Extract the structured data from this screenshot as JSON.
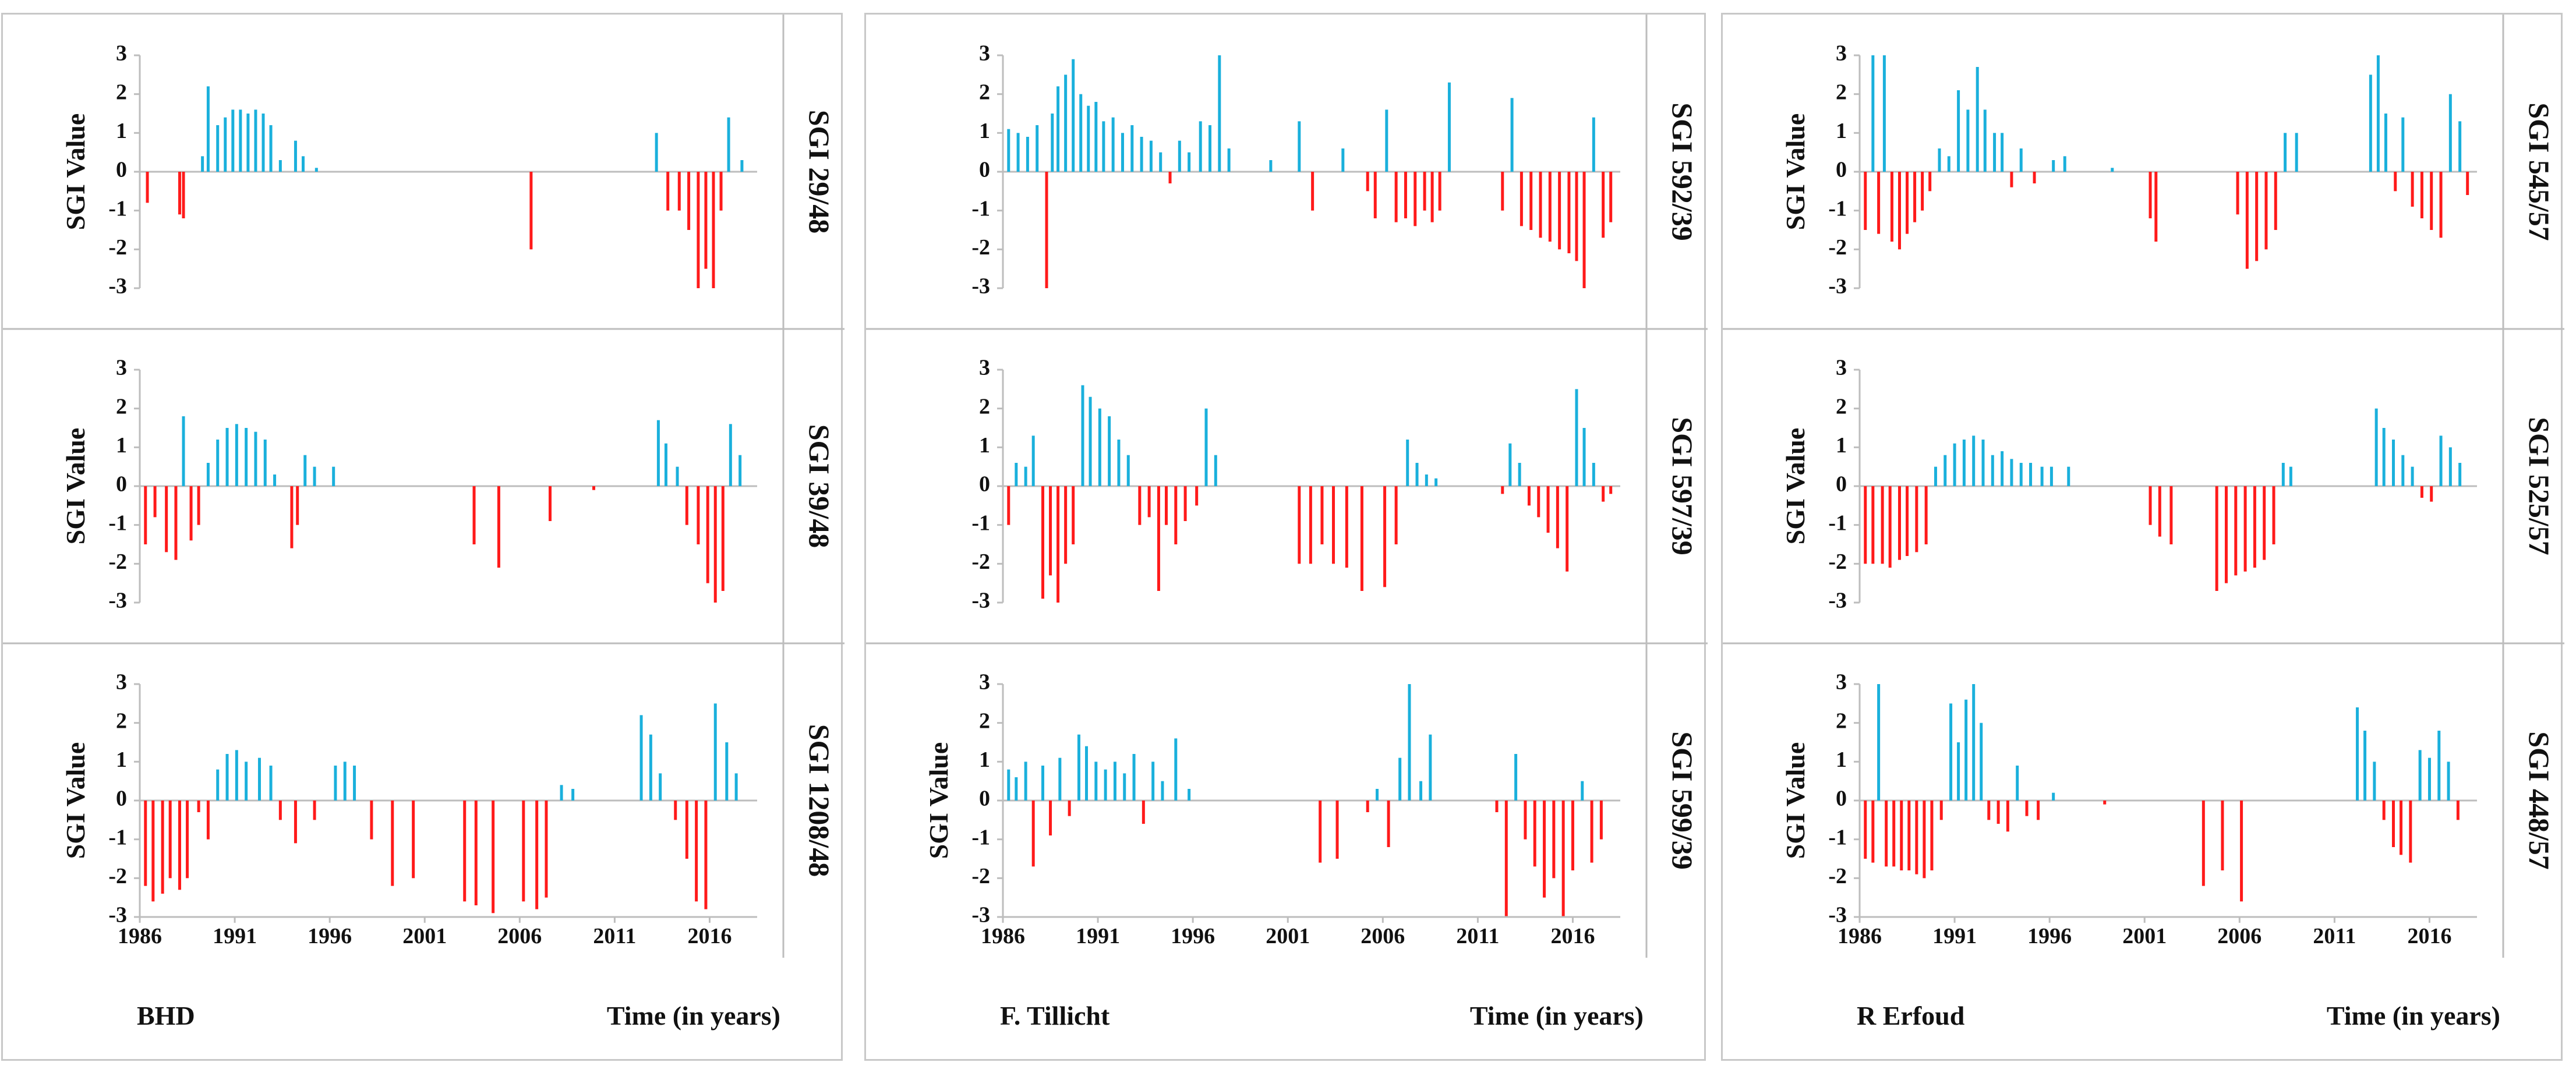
{
  "colors": {
    "positive": "#1ab0dc",
    "negative": "#ff1a1a",
    "axis": "#bdbdbd",
    "text": "#111111"
  },
  "chart_data": [
    {
      "type": "bar",
      "station": "BHD",
      "panel": "SGI 29/48",
      "ylabel": "SGI Value",
      "xlabel": "Time (in years)",
      "yticks": [
        3,
        2,
        1,
        0,
        -1,
        -2,
        -3
      ],
      "ylim": [
        -3,
        3
      ],
      "xlim": [
        1986,
        2018.5
      ],
      "xticks": [
        1986,
        1991,
        1996,
        2001,
        2006,
        2011,
        2016
      ],
      "x": [
        1986.4,
        1988.1,
        1988.3,
        1989.3,
        1989.6,
        1990.1,
        1990.5,
        1990.9,
        1991.3,
        1991.7,
        1992.1,
        1992.5,
        1992.9,
        1993.4,
        1994.2,
        1994.6,
        1995.3,
        2006.6,
        2013.2,
        2013.8,
        2014.4,
        2014.9,
        2015.4,
        2015.8,
        2016.2,
        2016.6,
        2017.0,
        2017.7
      ],
      "values": [
        -0.8,
        -1.1,
        -1.2,
        0.4,
        2.2,
        1.2,
        1.4,
        1.6,
        1.6,
        1.5,
        1.6,
        1.5,
        1.2,
        0.3,
        0.8,
        0.4,
        0.1,
        -2.0,
        1.0,
        -1.0,
        -1.0,
        -1.5,
        -3.0,
        -2.5,
        -3.0,
        -1.0,
        1.4,
        0.3
      ]
    },
    {
      "type": "bar",
      "station": "BHD",
      "panel": "SGI 39/48",
      "ylabel": "SGI Value",
      "xlabel": "Time (in years)",
      "yticks": [
        3,
        2,
        1,
        0,
        -1,
        -2,
        -3
      ],
      "ylim": [
        -3,
        3
      ],
      "xlim": [
        1986,
        2018.5
      ],
      "xticks": [
        1986,
        1991,
        1996,
        2001,
        2006,
        2011,
        2016
      ],
      "x": [
        1986.3,
        1986.8,
        1987.4,
        1987.9,
        1988.3,
        1988.7,
        1989.1,
        1989.6,
        1990.1,
        1990.6,
        1991.1,
        1991.6,
        1992.1,
        1992.6,
        1993.1,
        1994.0,
        1994.3,
        1994.7,
        1995.2,
        1996.2,
        2003.6,
        2004.9,
        2007.6,
        2009.9,
        2013.3,
        2013.7,
        2014.3,
        2014.8,
        2015.4,
        2015.9,
        2016.3,
        2016.7,
        2017.1,
        2017.6
      ],
      "values": [
        -1.5,
        -0.8,
        -1.7,
        -1.9,
        1.8,
        -1.4,
        -1.0,
        0.6,
        1.2,
        1.5,
        1.6,
        1.5,
        1.4,
        1.2,
        0.3,
        -1.6,
        -1.0,
        0.8,
        0.5,
        0.5,
        -1.5,
        -2.1,
        -0.9,
        -0.1,
        1.7,
        1.1,
        0.5,
        -1.0,
        -1.5,
        -2.5,
        -3.0,
        -2.7,
        1.6,
        0.8
      ]
    },
    {
      "type": "bar",
      "station": "BHD",
      "panel": "SGI 1208/48",
      "ylabel": "SGI Value",
      "xlabel": "Time (in years)",
      "yticks": [
        3,
        2,
        1,
        0,
        -1,
        -2,
        -3
      ],
      "ylim": [
        -3,
        3
      ],
      "xlim": [
        1986,
        2018.5
      ],
      "xticks": [
        1986,
        1991,
        1996,
        2001,
        2006,
        2011,
        2016
      ],
      "x": [
        1986.3,
        1986.7,
        1987.2,
        1987.6,
        1988.1,
        1988.5,
        1989.1,
        1989.6,
        1990.1,
        1990.6,
        1991.1,
        1991.6,
        1992.3,
        1992.9,
        1993.4,
        1994.2,
        1995.2,
        1996.3,
        1996.8,
        1997.3,
        1998.2,
        1999.3,
        2000.4,
        2003.1,
        2003.7,
        2004.6,
        2006.2,
        2006.9,
        2007.4,
        2008.2,
        2008.8,
        2012.4,
        2012.9,
        2013.4,
        2014.2,
        2014.8,
        2015.3,
        2015.8,
        2016.3,
        2016.9,
        2017.4
      ],
      "values": [
        -2.2,
        -2.6,
        -2.4,
        -2.0,
        -2.3,
        -2.0,
        -0.3,
        -1.0,
        0.8,
        1.2,
        1.3,
        1.0,
        1.1,
        0.9,
        -0.5,
        -1.1,
        -0.5,
        0.9,
        1.0,
        0.9,
        -1.0,
        -2.2,
        -2.0,
        -2.6,
        -2.7,
        -2.9,
        -2.6,
        -2.8,
        -2.5,
        0.4,
        0.3,
        2.2,
        1.7,
        0.7,
        -0.5,
        -1.5,
        -2.6,
        -2.8,
        2.5,
        1.5,
        0.7
      ]
    },
    {
      "type": "bar",
      "station": "F. Tillicht",
      "panel": "SGI 592/39",
      "ylabel": "",
      "xlabel": "Time (in years)",
      "yticks": [
        3,
        2,
        1,
        0,
        -1,
        -2,
        -3
      ],
      "ylim": [
        -3,
        3
      ],
      "xlim": [
        1986,
        2018.5
      ],
      "xticks": [
        1986,
        1991,
        1996,
        2001,
        2006,
        2011,
        2016
      ],
      "x": [
        1986.3,
        1986.8,
        1987.3,
        1987.8,
        1988.3,
        1988.6,
        1988.9,
        1989.3,
        1989.7,
        1990.1,
        1990.5,
        1990.9,
        1991.3,
        1991.8,
        1992.3,
        1992.8,
        1993.3,
        1993.8,
        1994.3,
        1994.8,
        1995.3,
        1995.8,
        1996.4,
        1996.9,
        1997.4,
        1997.9,
        2000.1,
        2001.6,
        2002.3,
        2003.9,
        2005.2,
        2005.6,
        2006.2,
        2006.7,
        2007.2,
        2007.7,
        2008.2,
        2008.6,
        2009.0,
        2009.5,
        2012.3,
        2012.8,
        2013.3,
        2013.8,
        2014.3,
        2014.8,
        2015.3,
        2015.8,
        2016.2,
        2016.6,
        2017.1,
        2017.6,
        2018.0
      ],
      "values": [
        1.1,
        1.0,
        0.9,
        1.2,
        -3.0,
        1.5,
        2.2,
        2.5,
        2.9,
        2.0,
        1.7,
        1.8,
        1.3,
        1.4,
        1.0,
        1.2,
        0.9,
        0.8,
        0.5,
        -0.3,
        0.8,
        0.5,
        1.3,
        1.2,
        3.0,
        0.6,
        0.3,
        1.3,
        -1.0,
        0.6,
        -0.5,
        -1.2,
        1.6,
        -1.3,
        -1.2,
        -1.4,
        -1.0,
        -1.3,
        -1.0,
        2.3,
        -1.0,
        1.9,
        -1.4,
        -1.5,
        -1.7,
        -1.8,
        -2.0,
        -2.1,
        -2.3,
        -3.0,
        1.4,
        -1.7,
        -1.3
      ]
    },
    {
      "type": "bar",
      "station": "F. Tillicht",
      "panel": "SGI 597/39",
      "ylabel": "",
      "xlabel": "Time (in years)",
      "yticks": [
        3,
        2,
        1,
        0,
        -1,
        -2,
        -3
      ],
      "ylim": [
        -3,
        3
      ],
      "xlim": [
        1986,
        2018.5
      ],
      "xticks": [
        1986,
        1991,
        1996,
        2001,
        2006,
        2011,
        2016
      ],
      "x": [
        1986.3,
        1986.7,
        1987.2,
        1987.6,
        1988.1,
        1988.5,
        1988.9,
        1989.3,
        1989.7,
        1990.2,
        1990.6,
        1991.1,
        1991.6,
        1992.1,
        1992.6,
        1993.2,
        1993.7,
        1994.2,
        1994.6,
        1995.1,
        1995.6,
        1996.2,
        1996.7,
        1997.2,
        2001.6,
        2002.2,
        2002.8,
        2003.4,
        2004.1,
        2004.9,
        2006.1,
        2006.7,
        2007.3,
        2007.8,
        2008.3,
        2008.8,
        2012.3,
        2012.7,
        2013.2,
        2013.7,
        2014.2,
        2014.7,
        2015.2,
        2015.7,
        2016.2,
        2016.6,
        2017.1,
        2017.6,
        2018.0
      ],
      "values": [
        -1.0,
        0.6,
        0.5,
        1.3,
        -2.9,
        -2.3,
        -3.0,
        -2.0,
        -1.5,
        2.6,
        2.3,
        2.0,
        1.8,
        1.2,
        0.8,
        -1.0,
        -0.8,
        -2.7,
        -1.0,
        -1.5,
        -0.9,
        -0.5,
        2.0,
        0.8,
        -2.0,
        -2.0,
        -1.5,
        -2.0,
        -2.1,
        -2.7,
        -2.6,
        -1.5,
        1.2,
        0.6,
        0.3,
        0.2,
        -0.2,
        1.1,
        0.6,
        -0.5,
        -0.8,
        -1.2,
        -1.6,
        -2.2,
        2.5,
        1.5,
        0.6,
        -0.4,
        -0.2
      ]
    },
    {
      "type": "bar",
      "station": "F. Tillicht",
      "panel": "SGI 599/39",
      "ylabel": "SGI Value",
      "xlabel": "Time (in years)",
      "yticks": [
        3,
        2,
        1,
        0,
        -1,
        -2,
        -3
      ],
      "ylim": [
        -3,
        3
      ],
      "xlim": [
        1986,
        2018.5
      ],
      "xticks": [
        1986,
        1991,
        1996,
        2001,
        2006,
        2011,
        2016
      ],
      "x": [
        1986.3,
        1986.7,
        1987.2,
        1987.6,
        1988.1,
        1988.5,
        1989.0,
        1989.5,
        1990.0,
        1990.4,
        1990.9,
        1991.4,
        1991.9,
        1992.4,
        1992.9,
        1993.4,
        1993.9,
        1994.4,
        1995.1,
        1995.8,
        2002.7,
        2003.6,
        2005.2,
        2005.7,
        2006.3,
        2006.9,
        2007.4,
        2008.0,
        2008.5,
        2012.0,
        2012.5,
        2013.0,
        2013.5,
        2014.0,
        2014.5,
        2015.0,
        2015.5,
        2016.0,
        2016.5,
        2017.0,
        2017.5
      ],
      "values": [
        0.8,
        0.6,
        1.0,
        -1.7,
        0.9,
        -0.9,
        1.1,
        -0.4,
        1.7,
        1.4,
        1.0,
        0.8,
        1.0,
        0.7,
        1.2,
        -0.6,
        1.0,
        0.5,
        1.6,
        0.3,
        -1.6,
        -1.5,
        -0.3,
        0.3,
        -1.2,
        1.1,
        3.0,
        0.5,
        1.7,
        -0.3,
        -3.0,
        1.2,
        -1.0,
        -1.7,
        -2.5,
        -2.0,
        -3.0,
        -1.8,
        0.5,
        -1.6,
        -1.0
      ]
    },
    {
      "type": "bar",
      "station": "R Erfoud",
      "panel": "SGI 545/57",
      "ylabel": "SGI Value",
      "xlabel": "Time (in years)",
      "yticks": [
        3,
        2,
        1,
        0,
        -1,
        -2,
        -3
      ],
      "ylim": [
        -3,
        3
      ],
      "xlim": [
        1986,
        2018.5
      ],
      "xticks": [
        1986,
        1991,
        1996,
        2001,
        2006,
        2011,
        2016
      ],
      "x": [
        1986.3,
        1986.7,
        1987.0,
        1987.3,
        1987.7,
        1988.1,
        1988.5,
        1988.9,
        1989.3,
        1989.7,
        1990.2,
        1990.7,
        1991.2,
        1991.7,
        1992.2,
        1992.6,
        1993.1,
        1993.5,
        1994.0,
        1994.5,
        1995.2,
        1996.2,
        1996.8,
        1999.3,
        2001.3,
        2001.6,
        2005.9,
        2006.4,
        2006.9,
        2007.4,
        2007.9,
        2008.4,
        2009.0,
        2012.9,
        2013.3,
        2013.7,
        2014.2,
        2014.6,
        2015.1,
        2015.6,
        2016.1,
        2016.6,
        2017.1,
        2017.6,
        2018.0
      ],
      "values": [
        -1.5,
        3.0,
        -1.6,
        3.0,
        -1.8,
        -2.0,
        -1.6,
        -1.3,
        -1.0,
        -0.5,
        0.6,
        0.4,
        2.1,
        1.6,
        2.7,
        1.6,
        1.0,
        1.0,
        -0.4,
        0.6,
        -0.3,
        0.3,
        0.4,
        0.1,
        -1.2,
        -1.8,
        -1.1,
        -2.5,
        -2.3,
        -2.0,
        -1.5,
        1.0,
        1.0,
        2.5,
        3.0,
        1.5,
        -0.5,
        1.4,
        -0.9,
        -1.2,
        -1.5,
        -1.7,
        2.0,
        1.3,
        -0.6
      ]
    },
    {
      "type": "bar",
      "station": "R Erfoud",
      "panel": "SGI 525/57",
      "ylabel": "SGI Value",
      "xlabel": "Time (in years)",
      "yticks": [
        3,
        2,
        1,
        0,
        -1,
        -2,
        -3
      ],
      "ylim": [
        -3,
        3
      ],
      "xlim": [
        1986,
        2018.5
      ],
      "xticks": [
        1986,
        1991,
        1996,
        2001,
        2006,
        2011,
        2016
      ],
      "x": [
        1986.3,
        1986.7,
        1987.2,
        1987.6,
        1988.1,
        1988.5,
        1989.0,
        1989.5,
        1990.0,
        1990.5,
        1991.0,
        1991.5,
        1992.0,
        1992.5,
        1993.0,
        1993.5,
        1994.0,
        1994.5,
        1995.0,
        1995.6,
        1996.1,
        1997.0,
        2001.3,
        2001.8,
        2002.4,
        2004.8,
        2005.3,
        2005.8,
        2006.3,
        2006.8,
        2007.3,
        2007.8,
        2008.3,
        2008.7,
        2013.2,
        2013.6,
        2014.1,
        2014.6,
        2015.1,
        2015.6,
        2016.1,
        2016.6,
        2017.1,
        2017.6
      ],
      "values": [
        -2.0,
        -2.0,
        -2.0,
        -2.1,
        -1.9,
        -1.8,
        -1.7,
        -1.5,
        0.5,
        0.8,
        1.1,
        1.2,
        1.3,
        1.2,
        0.8,
        0.9,
        0.7,
        0.6,
        0.6,
        0.5,
        0.5,
        0.5,
        -1.0,
        -1.3,
        -1.5,
        -2.7,
        -2.5,
        -2.3,
        -2.2,
        -2.1,
        -1.9,
        -1.5,
        0.6,
        0.5,
        2.0,
        1.5,
        1.2,
        0.8,
        0.5,
        -0.3,
        -0.4,
        1.3,
        1.0,
        0.6
      ]
    },
    {
      "type": "bar",
      "station": "R Erfoud",
      "panel": "SGI 448/57",
      "ylabel": "SGI Value",
      "xlabel": "Time (in years)",
      "yticks": [
        3,
        2,
        1,
        0,
        -1,
        -2,
        -3
      ],
      "ylim": [
        -3,
        3
      ],
      "xlim": [
        1986,
        2018.5
      ],
      "xticks": [
        1986,
        1991,
        1996,
        2001,
        2006,
        2011,
        2016
      ],
      "x": [
        1986.3,
        1986.7,
        1987.0,
        1987.4,
        1987.8,
        1988.2,
        1988.6,
        1989.0,
        1989.4,
        1989.8,
        1990.3,
        1990.8,
        1991.2,
        1991.6,
        1992.0,
        1992.4,
        1992.8,
        1993.3,
        1993.8,
        1994.3,
        1994.8,
        1995.4,
        1996.2,
        1998.9,
        2004.1,
        2005.1,
        2006.1,
        2012.2,
        2012.6,
        2013.1,
        2013.6,
        2014.1,
        2014.5,
        2015.0,
        2015.5,
        2016.0,
        2016.5,
        2017.0,
        2017.5
      ],
      "values": [
        -1.5,
        -1.6,
        3.0,
        -1.7,
        -1.7,
        -1.8,
        -1.8,
        -1.9,
        -2.0,
        -1.8,
        -0.5,
        2.5,
        1.5,
        2.6,
        3.0,
        2.0,
        -0.5,
        -0.6,
        -0.8,
        0.9,
        -0.4,
        -0.5,
        0.2,
        -0.1,
        -2.2,
        -1.8,
        -2.6,
        2.4,
        1.8,
        1.0,
        -0.5,
        -1.2,
        -1.4,
        -1.6,
        1.3,
        1.1,
        1.8,
        1.0,
        -0.5
      ]
    }
  ]
}
